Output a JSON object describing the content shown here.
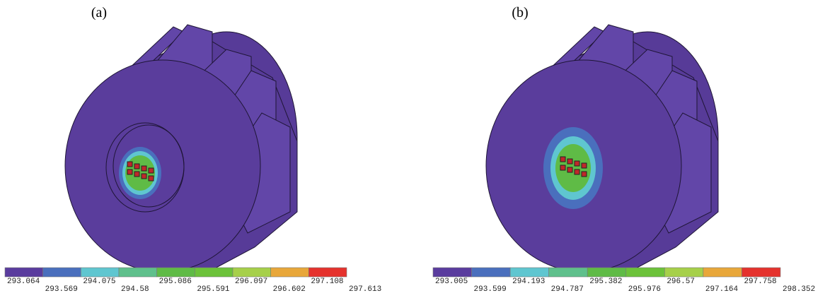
{
  "panels": [
    {
      "label": "(a)",
      "legend": {
        "values": [
          293.064,
          293.569,
          294.075,
          294.58,
          295.086,
          295.591,
          296.097,
          296.602,
          297.108,
          297.613
        ],
        "colors": [
          "#5a3c9e",
          "#4a6fbd",
          "#5fc6d0",
          "#5fc08c",
          "#5fbb46",
          "#6cc23a",
          "#a6d04a",
          "#e8a73a",
          "#e5322d"
        ]
      }
    },
    {
      "label": "(b)",
      "legend": {
        "values": [
          293.005,
          293.599,
          294.193,
          294.787,
          295.382,
          295.976,
          296.57,
          297.164,
          297.758,
          298.352
        ],
        "colors": [
          "#5a3c9e",
          "#4a6fbd",
          "#5fc6d0",
          "#5fc08c",
          "#5fbb46",
          "#6cc23a",
          "#a6d04a",
          "#e8a73a",
          "#e5322d"
        ]
      }
    }
  ]
}
